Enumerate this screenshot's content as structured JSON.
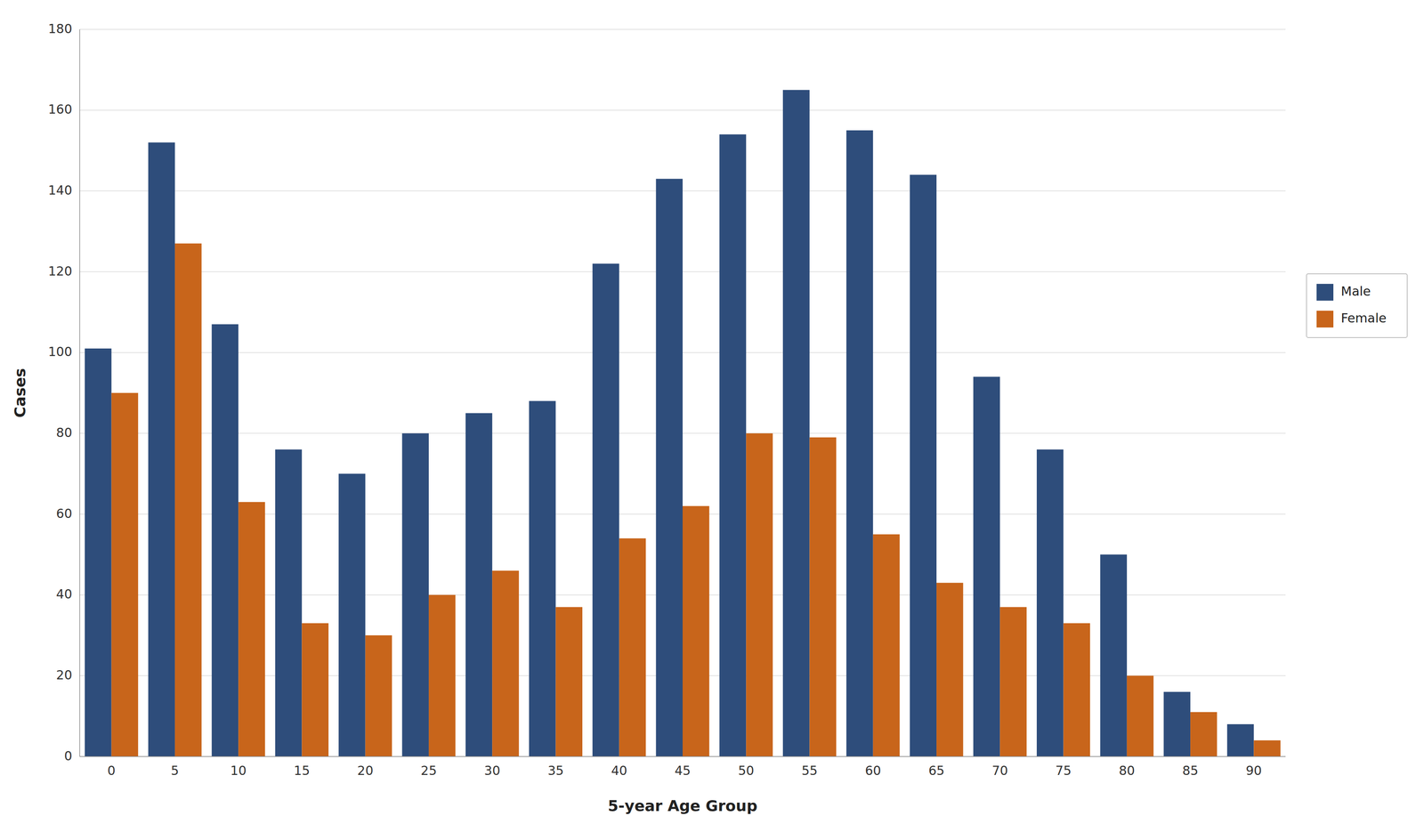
{
  "chart_data": {
    "type": "bar",
    "x_label": "5-year Age Group",
    "y_label": "Cases",
    "categories": [
      "0",
      "5",
      "10",
      "15",
      "20",
      "25",
      "30",
      "35",
      "40",
      "45",
      "50",
      "55",
      "60",
      "65",
      "70",
      "75",
      "80",
      "85",
      "90"
    ],
    "series": [
      {
        "name": "Male",
        "color": "#2E4D7B",
        "values": [
          101,
          152,
          107,
          76,
          70,
          80,
          85,
          88,
          122,
          143,
          154,
          165,
          155,
          144,
          94,
          76,
          50,
          16,
          8
        ]
      },
      {
        "name": "Female",
        "color": "#C8651B",
        "values": [
          90,
          127,
          63,
          33,
          30,
          40,
          46,
          37,
          54,
          62,
          80,
          79,
          55,
          43,
          37,
          33,
          20,
          11,
          4
        ]
      }
    ],
    "ylim": [
      0,
      180
    ],
    "yticks": [
      0,
      20,
      40,
      60,
      80,
      100,
      120,
      140,
      160,
      180
    ],
    "grid": true,
    "legend": "right"
  }
}
